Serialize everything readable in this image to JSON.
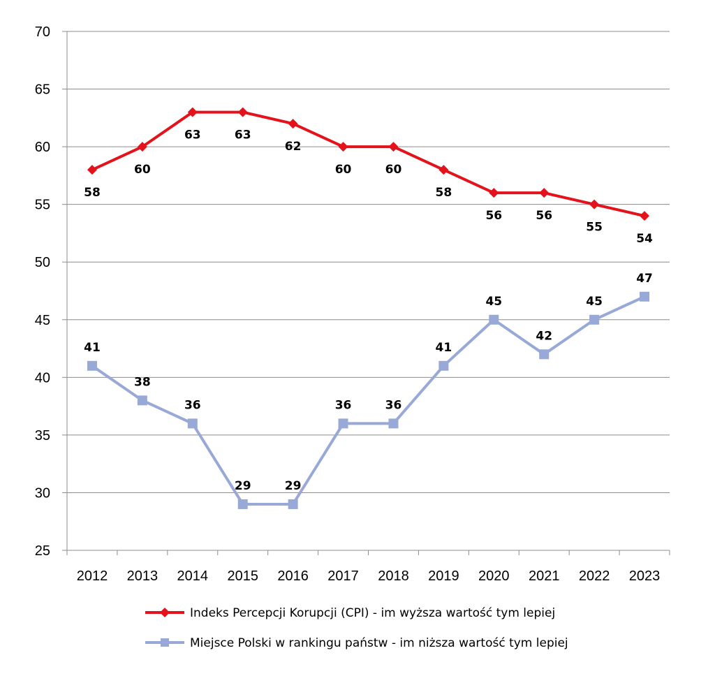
{
  "chart_data": {
    "type": "line",
    "title": "",
    "xlabel": "",
    "ylabel": "",
    "x": [
      "2012",
      "2013",
      "2014",
      "2015",
      "2016",
      "2017",
      "2018",
      "2019",
      "2020",
      "2021",
      "2022",
      "2023"
    ],
    "ylim": [
      25,
      70
    ],
    "yticks": [
      25,
      30,
      35,
      40,
      45,
      50,
      55,
      60,
      65,
      70
    ],
    "grid": true,
    "legend_position": "bottom",
    "series": [
      {
        "name": "Indeks Percepcji Korupcji (CPI) - im wyższa wartość tym lepiej",
        "values": [
          58,
          60,
          63,
          63,
          62,
          60,
          60,
          58,
          56,
          56,
          55,
          54
        ],
        "color": "#e3121b",
        "marker": "diamond",
        "label_position": "below"
      },
      {
        "name": "Miejsce Polski w rankingu państw - im niższa wartość tym lepiej",
        "values": [
          41,
          38,
          36,
          29,
          29,
          36,
          36,
          41,
          45,
          42,
          45,
          47
        ],
        "color": "#98a9d7",
        "marker": "square",
        "label_position": "above"
      }
    ]
  }
}
